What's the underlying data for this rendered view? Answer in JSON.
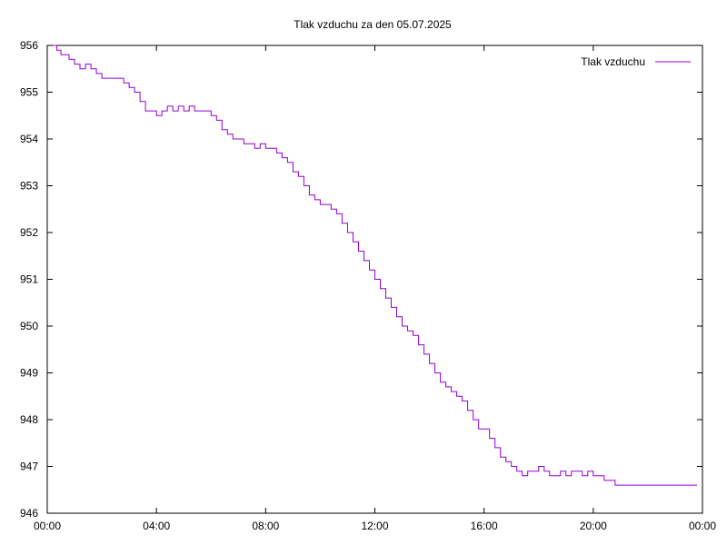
{
  "chart_data": {
    "type": "line",
    "title": "Tlak vzduchu za den 05.07.2025",
    "xlabel": "",
    "ylabel": "",
    "x_unit": "hours",
    "xlim": [
      0,
      24
    ],
    "ylim": [
      946,
      956
    ],
    "x_ticks": [
      "00:00",
      "04:00",
      "08:00",
      "12:00",
      "16:00",
      "20:00",
      "00:00"
    ],
    "y_ticks": [
      "946",
      "947",
      "948",
      "949",
      "950",
      "951",
      "952",
      "953",
      "954",
      "955",
      "956"
    ],
    "grid": false,
    "legend_position": "top-right",
    "series": [
      {
        "name": "Tlak vzduchu",
        "color": "#9400d3",
        "x": [
          0.2,
          0.35,
          0.5,
          0.65,
          0.8,
          1.0,
          1.2,
          1.4,
          1.6,
          1.8,
          2.0,
          2.2,
          2.5,
          2.8,
          3.0,
          3.2,
          3.4,
          3.6,
          3.8,
          4.0,
          4.2,
          4.4,
          4.6,
          4.8,
          5.0,
          5.2,
          5.4,
          5.6,
          5.8,
          6.0,
          6.2,
          6.4,
          6.6,
          6.8,
          7.0,
          7.2,
          7.4,
          7.6,
          7.8,
          8.0,
          8.2,
          8.4,
          8.6,
          8.8,
          9.0,
          9.2,
          9.4,
          9.6,
          9.8,
          10.0,
          10.2,
          10.4,
          10.6,
          10.8,
          11.0,
          11.2,
          11.4,
          11.6,
          11.8,
          12.0,
          12.2,
          12.4,
          12.6,
          12.8,
          13.0,
          13.2,
          13.4,
          13.6,
          13.8,
          14.0,
          14.2,
          14.4,
          14.6,
          14.8,
          15.0,
          15.2,
          15.4,
          15.6,
          15.8,
          16.0,
          16.2,
          16.4,
          16.6,
          16.8,
          17.0,
          17.2,
          17.4,
          17.6,
          17.8,
          18.0,
          18.2,
          18.4,
          18.6,
          18.8,
          19.0,
          19.2,
          19.4,
          19.6,
          19.8,
          20.0,
          20.2,
          20.4,
          20.6,
          20.8,
          21.0,
          21.2,
          21.4,
          21.6,
          21.8,
          22.0,
          22.2,
          22.4,
          22.6,
          22.8,
          23.0,
          23.2,
          23.4,
          23.6,
          23.8
        ],
        "values": [
          956.0,
          955.9,
          955.8,
          955.8,
          955.7,
          955.6,
          955.5,
          955.6,
          955.5,
          955.4,
          955.3,
          955.3,
          955.3,
          955.2,
          955.1,
          955.0,
          954.8,
          954.6,
          954.6,
          954.5,
          954.6,
          954.7,
          954.6,
          954.7,
          954.6,
          954.7,
          954.6,
          954.6,
          954.6,
          954.5,
          954.4,
          954.2,
          954.1,
          954.0,
          954.0,
          953.9,
          953.9,
          953.8,
          953.9,
          953.8,
          953.8,
          953.7,
          953.6,
          953.5,
          953.3,
          953.2,
          953.0,
          952.8,
          952.7,
          952.6,
          952.6,
          952.5,
          952.4,
          952.2,
          952.0,
          951.8,
          951.6,
          951.4,
          951.2,
          951.0,
          950.8,
          950.6,
          950.4,
          950.2,
          950.0,
          949.9,
          949.8,
          949.6,
          949.4,
          949.2,
          949.0,
          948.8,
          948.7,
          948.6,
          948.5,
          948.4,
          948.2,
          948.0,
          947.8,
          947.8,
          947.6,
          947.4,
          947.2,
          947.1,
          947.0,
          946.9,
          946.8,
          946.9,
          946.9,
          947.0,
          946.9,
          946.8,
          946.8,
          946.9,
          946.8,
          946.9,
          946.9,
          946.8,
          946.9,
          946.8,
          946.8,
          946.7,
          946.7,
          946.6,
          946.6,
          946.6,
          946.6,
          946.6,
          946.6,
          946.6,
          946.6,
          946.6,
          946.6,
          946.6,
          946.6,
          946.6,
          946.6,
          946.6,
          946.6
        ]
      }
    ]
  }
}
